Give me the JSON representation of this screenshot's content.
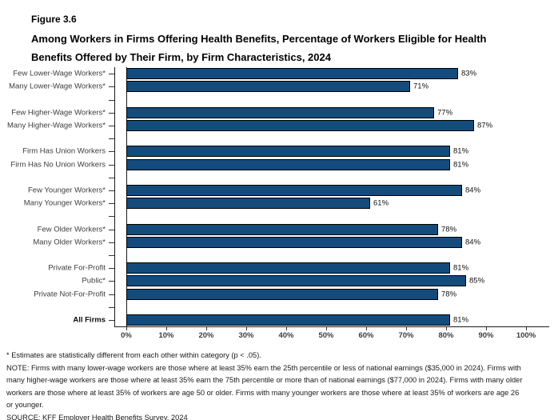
{
  "header": {
    "figure_label": "Figure 3.6",
    "title": "Among Workers in Firms Offering Health Benefits, Percentage of Workers Eligible for Health Benefits Offered by Their Firm, by Firm Characteristics, 2024"
  },
  "chart_data": {
    "type": "bar",
    "orientation": "horizontal",
    "title": "Among Workers in Firms Offering Health Benefits, Percentage of Workers Eligible for Health Benefits Offered by Their Firm, by Firm Characteristics, 2024",
    "xlabel": "",
    "ylabel": "",
    "grid": false,
    "legend": false,
    "bar_color": "#144B7D",
    "bar_border_color": "#000000",
    "x_axis": {
      "min": 0,
      "max": 100,
      "tick_step": 10,
      "tick_labels": [
        "0%",
        "10%",
        "20%",
        "30%",
        "40%",
        "50%",
        "60%",
        "70%",
        "80%",
        "90%",
        "100%"
      ]
    },
    "groups": [
      [
        {
          "label": "Few Lower-Wage Workers*",
          "value": 83,
          "value_label": "83%"
        },
        {
          "label": "Many Lower-Wage Workers*",
          "value": 71,
          "value_label": "71%"
        }
      ],
      [
        {
          "label": "Few Higher-Wage Workers*",
          "value": 77,
          "value_label": "77%"
        },
        {
          "label": "Many Higher-Wage Workers*",
          "value": 87,
          "value_label": "87%"
        }
      ],
      [
        {
          "label": "Firm Has Union Workers",
          "value": 81,
          "value_label": "81%"
        },
        {
          "label": "Firm Has No Union Workers",
          "value": 81,
          "value_label": "81%"
        }
      ],
      [
        {
          "label": "Few Younger Workers*",
          "value": 84,
          "value_label": "84%"
        },
        {
          "label": "Many Younger Workers*",
          "value": 61,
          "value_label": "61%"
        }
      ],
      [
        {
          "label": "Few Older Workers*",
          "value": 78,
          "value_label": "78%"
        },
        {
          "label": "Many Older Workers*",
          "value": 84,
          "value_label": "84%"
        }
      ],
      [
        {
          "label": "Private For-Profit",
          "value": 81,
          "value_label": "81%"
        },
        {
          "label": "Public*",
          "value": 85,
          "value_label": "85%"
        },
        {
          "label": "Private Not-For-Profit",
          "value": 78,
          "value_label": "78%"
        }
      ],
      [
        {
          "label": "All Firms",
          "value": 81,
          "value_label": "81%",
          "bold": true
        }
      ]
    ]
  },
  "footnotes": {
    "asterisk": "* Estimates are statistically different from each other within category (p < .05).",
    "note": "NOTE: Firms with many lower-wage workers are those where at least 35% earn the 25th percentile or less of national earnings ($35,000 in 2024). Firms with many higher-wage workers are those where at least 35% earn the 75th percentile or more than of national earnings ($77,000 in 2024). Firms with many older workers are those where at least 35% of workers are age 50 or older. Firms with many younger workers are those where at least 35% of workers are age 26 or younger.",
    "source": "SOURCE: KFF Employer Health Benefits Survey, 2024"
  }
}
